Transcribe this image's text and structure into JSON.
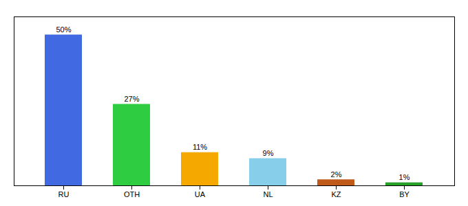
{
  "chart_data": {
    "type": "bar",
    "categories": [
      "RU",
      "OTH",
      "UA",
      "NL",
      "KZ",
      "BY"
    ],
    "values": [
      50,
      27,
      11,
      9,
      2,
      1
    ],
    "value_labels": [
      "50%",
      "27%",
      "11%",
      "9%",
      "2%",
      "1%"
    ],
    "colors": [
      "#4169e1",
      "#2ecc40",
      "#f5a800",
      "#87ceeb",
      "#c05a1a",
      "#27a027"
    ],
    "ylim": [
      0,
      56
    ],
    "data_labels": true,
    "tick_labels": "x",
    "grid": false
  }
}
